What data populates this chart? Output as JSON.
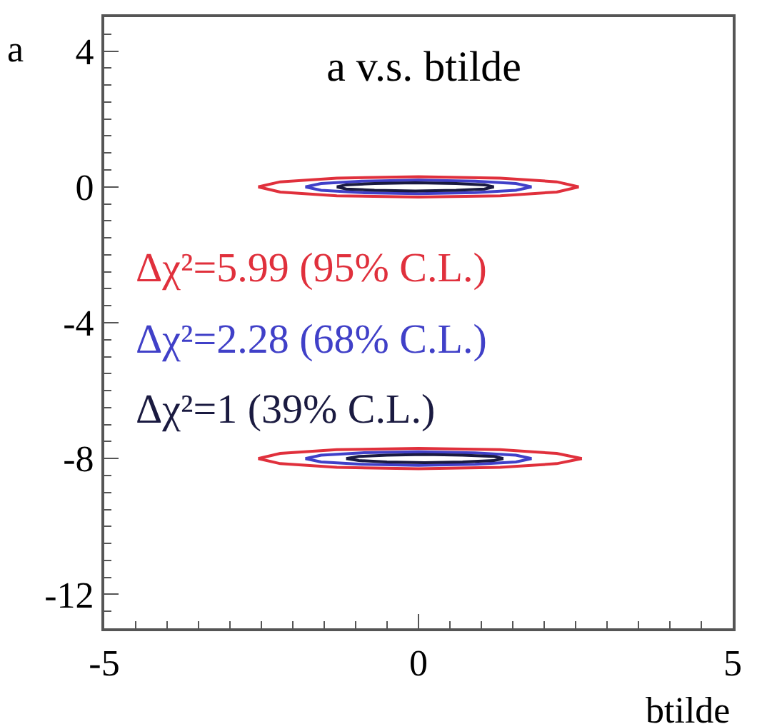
{
  "chart_data": {
    "type": "line",
    "title": "a v.s. btilde",
    "xlabel": "btilde",
    "ylabel": "a",
    "xlim": [
      -5,
      5
    ],
    "xticks": [
      -5,
      0,
      5
    ],
    "ylim": [
      -13,
      5
    ],
    "yticks": [
      -12,
      -8,
      -4,
      0,
      4
    ],
    "legend": false,
    "marker": "none",
    "line_style": "solid",
    "series": [
      {
        "name": "Δχ²=5.99 (95% C.L.)",
        "color": "#e0303c",
        "x": [
          -2.55,
          -2.2,
          -1.3,
          0,
          1.3,
          2.2,
          2.55
        ],
        "values": [
          0,
          0.15,
          0.26,
          0.3,
          0.26,
          0.15,
          0
        ]
      },
      {
        "name": "Δχ²=2.28 (68% C.L.)",
        "color": "#4040c8",
        "x": [
          -1.8,
          -1.55,
          -0.9,
          0,
          0.9,
          1.55,
          1.8
        ],
        "values": [
          0,
          0.1,
          0.17,
          0.2,
          0.17,
          0.1,
          0
        ]
      },
      {
        "name": "Δχ²=1 (39% C.L.)",
        "color": "#1a1a40",
        "x": [
          -1.3,
          -1.15,
          -0.7,
          -0.05,
          0.6,
          1.05,
          1.2
        ],
        "values": [
          0,
          0.06,
          0.1,
          0.12,
          0.1,
          0.06,
          0
        ]
      },
      {
        "color": "#e0303c",
        "x": [
          -2.55,
          -2.2,
          -1.3,
          0,
          1.3,
          2.2,
          2.55
        ],
        "values": [
          0,
          -0.15,
          -0.26,
          -0.3,
          -0.26,
          -0.15,
          0
        ]
      },
      {
        "color": "#4040c8",
        "x": [
          -1.8,
          -1.55,
          -0.9,
          0,
          0.9,
          1.55,
          1.8
        ],
        "values": [
          0,
          -0.1,
          -0.17,
          -0.2,
          -0.17,
          -0.1,
          0
        ]
      },
      {
        "color": "#1a1a40",
        "x": [
          -1.3,
          -1.15,
          -0.7,
          -0.05,
          0.6,
          1.05,
          1.2
        ],
        "values": [
          0,
          -0.06,
          -0.1,
          -0.12,
          -0.1,
          -0.06,
          0
        ]
      },
      {
        "color": "#e0303c",
        "x": [
          -2.55,
          -2.2,
          -1.3,
          0,
          1.3,
          2.2,
          2.6
        ],
        "values": [
          -8,
          -7.85,
          -7.74,
          -7.7,
          -7.74,
          -7.85,
          -8
        ]
      },
      {
        "color": "#4040c8",
        "x": [
          -1.8,
          -1.55,
          -0.9,
          0,
          0.9,
          1.55,
          1.8
        ],
        "values": [
          -8,
          -7.9,
          -7.83,
          -7.8,
          -7.83,
          -7.9,
          -8
        ]
      },
      {
        "color": "#1a1a40",
        "x": [
          -1.15,
          -0.95,
          -0.5,
          0.1,
          0.7,
          1.2,
          1.35
        ],
        "values": [
          -8,
          -7.94,
          -7.9,
          -7.88,
          -7.9,
          -7.94,
          -8
        ]
      },
      {
        "color": "#e0303c",
        "x": [
          -2.55,
          -2.2,
          -1.3,
          0,
          1.3,
          2.2,
          2.6
        ],
        "values": [
          -8,
          -8.15,
          -8.26,
          -8.3,
          -8.26,
          -8.15,
          -8
        ]
      },
      {
        "color": "#4040c8",
        "x": [
          -1.8,
          -1.55,
          -0.9,
          0,
          0.9,
          1.55,
          1.8
        ],
        "values": [
          -8,
          -8.1,
          -8.17,
          -8.2,
          -8.17,
          -8.1,
          -8
        ]
      },
      {
        "color": "#1a1a40",
        "x": [
          -1.15,
          -0.95,
          -0.5,
          0.1,
          0.7,
          1.2,
          1.35
        ],
        "values": [
          -8,
          -8.06,
          -8.1,
          -8.12,
          -8.1,
          -8.06,
          -8
        ]
      }
    ]
  }
}
